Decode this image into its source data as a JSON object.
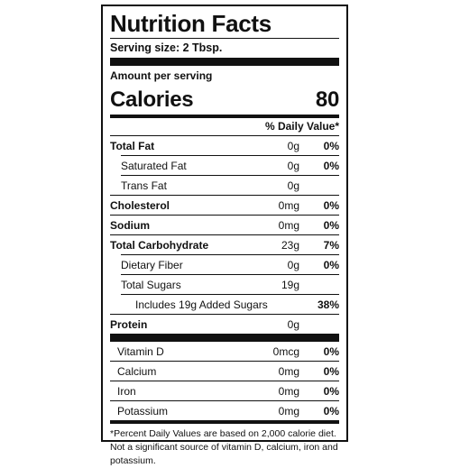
{
  "title": "Nutrition Facts",
  "serving_size": "Serving size: 2 Tbsp.",
  "amount_per_serving": "Amount per serving",
  "calories": {
    "label": "Calories",
    "value": "80"
  },
  "daily_value_header": "% Daily Value*",
  "nutrients": [
    {
      "name": "Total Fat",
      "amount": "0g",
      "dv": "0%"
    },
    {
      "name": "Saturated Fat",
      "amount": "0g",
      "dv": "0%"
    },
    {
      "name": "Trans Fat",
      "amount": "0g",
      "dv": ""
    },
    {
      "name": "Cholesterol",
      "amount": "0mg",
      "dv": "0%"
    },
    {
      "name": "Sodium",
      "amount": "0mg",
      "dv": "0%"
    },
    {
      "name": "Total Carbohydrate",
      "amount": "23g",
      "dv": "7%"
    },
    {
      "name": "Dietary Fiber",
      "amount": "0g",
      "dv": "0%"
    },
    {
      "name": "Total Sugars",
      "amount": "19g",
      "dv": ""
    },
    {
      "name": "Includes 19g Added Sugars",
      "amount": "",
      "dv": "38%"
    },
    {
      "name": "Protein",
      "amount": "0g",
      "dv": ""
    }
  ],
  "vitamins": [
    {
      "name": "Vitamin D",
      "amount": "0mcg",
      "dv": "0%"
    },
    {
      "name": "Calcium",
      "amount": "0mg",
      "dv": "0%"
    },
    {
      "name": "Iron",
      "amount": "0mg",
      "dv": "0%"
    },
    {
      "name": "Potassium",
      "amount": "0mg",
      "dv": "0%"
    }
  ],
  "footnote": "*Percent Daily Values are based on 2,000 calorie diet. Not a significant source of vitamin D, calcium, iron and potassium."
}
